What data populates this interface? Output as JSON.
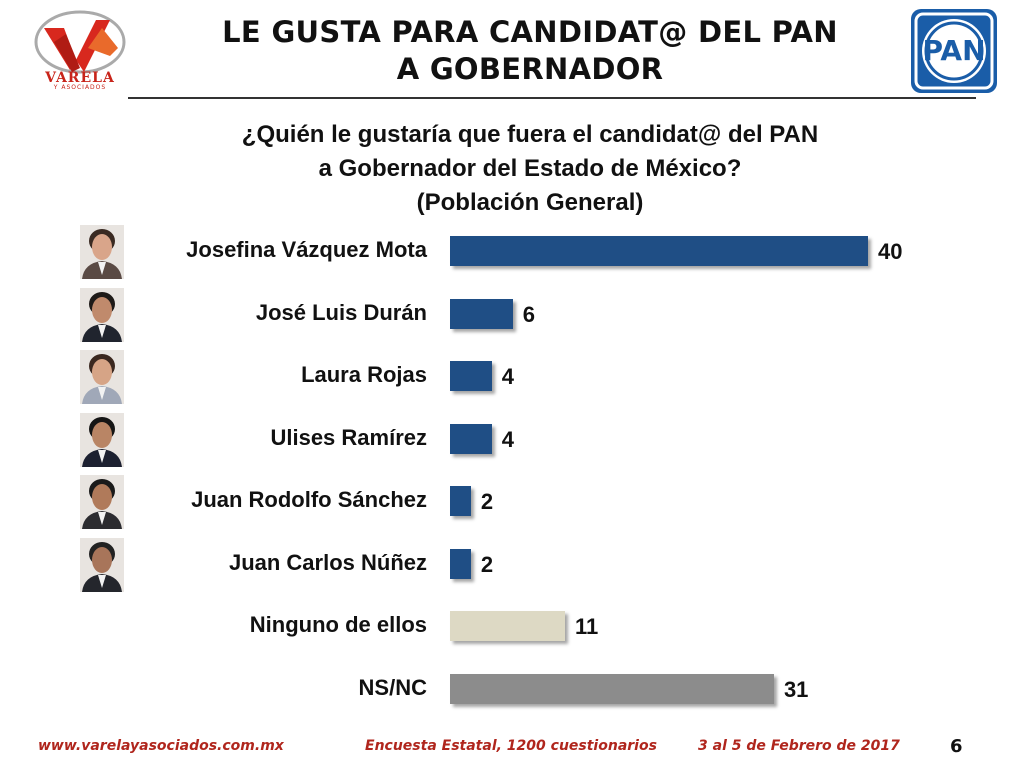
{
  "header": {
    "title_line1": "LE GUSTA PARA CANDIDAT@ DEL PAN",
    "title_line2": "A GOBERNADOR",
    "logo_left_text": "VARELA",
    "logo_left_subtext": "Y ASOCIADOS",
    "logo_right_text": "PAN"
  },
  "question": {
    "line1": "¿Quién le gustaría que fuera el candidat@ del PAN",
    "line2": "a Gobernador del Estado de México?",
    "line3": "(Población General)"
  },
  "colors": {
    "candidate_bar": "#1f4e85",
    "ninguno_bar": "#ddd9c4",
    "nsnc_bar": "#8c8c8c",
    "footer_text": "#b0261d",
    "pan_blue": "#1a5da8"
  },
  "chart_data": {
    "type": "bar",
    "orientation": "horizontal",
    "categories": [
      "Josefina Vázquez Mota",
      "José Luis Durán",
      "Laura Rojas",
      "Ulises Ramírez",
      "Juan Rodolfo Sánchez",
      "Juan Carlos Núñez",
      "Ninguno de ellos",
      "NS/NC"
    ],
    "values": [
      40,
      6,
      4,
      4,
      2,
      2,
      11,
      31
    ],
    "value_labels": [
      "40",
      "6",
      "4",
      "4",
      "2",
      "2",
      "11",
      "31"
    ],
    "has_photo": [
      true,
      true,
      true,
      true,
      true,
      true,
      false,
      false
    ],
    "bar_colors": [
      "#1f4e85",
      "#1f4e85",
      "#1f4e85",
      "#1f4e85",
      "#1f4e85",
      "#1f4e85",
      "#ddd9c4",
      "#8c8c8c"
    ],
    "xlim": [
      0,
      40
    ],
    "grid": false,
    "legend": "none"
  },
  "footer": {
    "website": "www.varelayasociados.com.mx",
    "survey": "Encuesta Estatal, 1200 cuestionarios",
    "date": "3 al 5 de Febrero de 2017",
    "page": "6"
  }
}
